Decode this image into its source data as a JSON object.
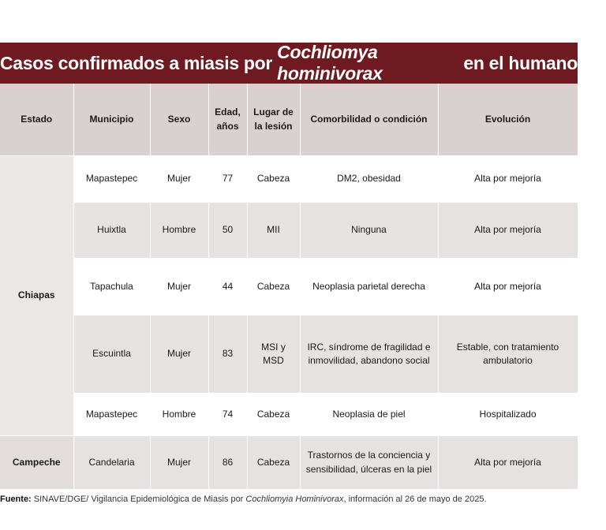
{
  "title": {
    "prefix": "Casos confirmados a miasis por ",
    "species": "Cochliomya hominivorax",
    "suffix": " en el humano"
  },
  "headers": [
    "Estado",
    "Municipio",
    "Sexo",
    "Edad, años",
    "Lugar de la lesión",
    "Comorbilidad o condición",
    "Evolución"
  ],
  "states": [
    {
      "name": "Chiapas",
      "rows": [
        {
          "municipio": "Mapastepec",
          "sexo": "Mujer",
          "edad": "77",
          "lugar": "Cabeza",
          "comorbilidad": "DM2, obesidad",
          "evolucion": "Alta por mejoría"
        },
        {
          "municipio": "Huixtla",
          "sexo": "Hombre",
          "edad": "50",
          "lugar": "MII",
          "comorbilidad": "Ninguna",
          "evolucion": "Alta por mejoría"
        },
        {
          "municipio": "Tapachula",
          "sexo": "Mujer",
          "edad": "44",
          "lugar": "Cabeza",
          "comorbilidad": "Neoplasia parietal derecha",
          "evolucion": "Alta por mejoría"
        },
        {
          "municipio": "Escuintla",
          "sexo": "Mujer",
          "edad": "83",
          "lugar": "MSI y MSD",
          "comorbilidad": "IRC, síndrome de fragilidad e inmovilidad, abandono social",
          "evolucion": "Estable, con tratamiento ambulatorio"
        },
        {
          "municipio": "Mapastepec",
          "sexo": "Hombre",
          "edad": "74",
          "lugar": "Cabeza",
          "comorbilidad": "Neoplasia de piel",
          "evolucion": "Hospitalizado"
        }
      ]
    },
    {
      "name": "Campeche",
      "rows": [
        {
          "municipio": "Candelaria",
          "sexo": "Mujer",
          "edad": "86",
          "lugar": "Cabeza",
          "comorbilidad": "Trastornos de la conciencia y sensibilidad, úlceras en la piel",
          "evolucion": "Alta por mejoría"
        }
      ]
    }
  ],
  "footer": {
    "label": "Fuente:",
    "source": " SINAVE/DGE/",
    "text": " Vigilancia Epidemiológica de Miasis por ",
    "species": "Cochliomyia Hominivorax",
    "date": ", información al 26 de mayo de 2025."
  }
}
